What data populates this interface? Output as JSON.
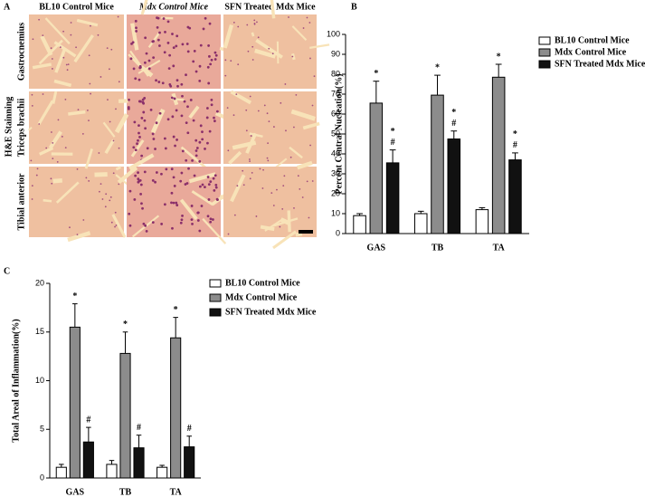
{
  "panel_a": {
    "panel": "A",
    "stain_label": "H&E Stainning",
    "columns": [
      "BL10 Control Mice",
      "Mdx Control Mice",
      "SFN Treated Mdx Mice"
    ],
    "rows": [
      "Gastrocnemius",
      "Triceps brachii",
      "Tibial anterior"
    ]
  },
  "chart_data": [
    {
      "type": "bar",
      "panel": "B",
      "y_label": "Percent Central Nucleation(%)",
      "categories": [
        "GAS",
        "TB",
        "TA"
      ],
      "series": [
        {
          "name": "BL10 Control Mice",
          "color": "#ffffff",
          "values": [
            9,
            10,
            12
          ],
          "errors": [
            1,
            1.2,
            1
          ]
        },
        {
          "name": "Mdx Control Mice",
          "color": "#8c8c8c",
          "values": [
            65.5,
            69.5,
            78.5
          ],
          "errors": [
            11,
            10,
            6.5
          ],
          "markers": [
            [
              "*"
            ],
            [
              "*"
            ],
            [
              "*"
            ]
          ]
        },
        {
          "name": "SFN Treated Mdx Mice",
          "color": "#111111",
          "values": [
            35.5,
            47.5,
            37
          ],
          "errors": [
            6.5,
            4,
            3.5
          ],
          "markers": [
            [
              "*",
              "#"
            ],
            [
              "*",
              "#"
            ],
            [
              "*",
              "#"
            ]
          ]
        }
      ],
      "ylim": [
        0,
        100
      ],
      "yticks": [
        0,
        10,
        20,
        30,
        40,
        50,
        60,
        70,
        80,
        90,
        100
      ],
      "legend": "right"
    },
    {
      "type": "bar",
      "panel": "C",
      "y_label": "Total Areal of Inflammation(%)",
      "categories": [
        "GAS",
        "TB",
        "TA"
      ],
      "series": [
        {
          "name": "BL10 Control Mice",
          "color": "#ffffff",
          "values": [
            1.1,
            1.4,
            1.1
          ],
          "errors": [
            0.3,
            0.4,
            0.2
          ]
        },
        {
          "name": "Mdx Control Mice",
          "color": "#8c8c8c",
          "values": [
            15.5,
            12.8,
            14.4
          ],
          "errors": [
            2.4,
            2.2,
            2.1
          ],
          "markers": [
            [
              "*"
            ],
            [
              "*"
            ],
            [
              "*"
            ]
          ]
        },
        {
          "name": "SFN Treated Mdx Mice",
          "color": "#111111",
          "values": [
            3.7,
            3.1,
            3.2
          ],
          "errors": [
            1.5,
            1.3,
            1.1
          ],
          "markers": [
            [
              "#"
            ],
            [
              "#"
            ],
            [
              "#"
            ]
          ]
        }
      ],
      "ylim": [
        0,
        20
      ],
      "yticks": [
        0,
        5,
        10,
        15,
        20
      ],
      "legend": "right"
    }
  ]
}
